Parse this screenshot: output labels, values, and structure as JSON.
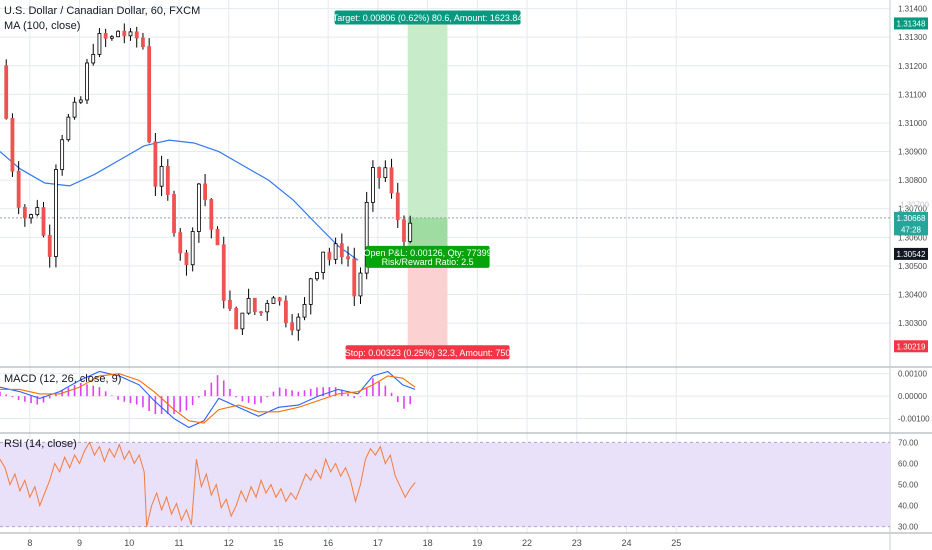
{
  "header": {
    "symbol": "U.S. Dollar / Canadian Dollar, 60, FXCM",
    "ma_label": "MA (100, close)"
  },
  "panes": {
    "macd_label": "MACD (12, 26, close, 9)",
    "rsi_label": "RSI (14, close)"
  },
  "colors": {
    "up": "#26a69a",
    "down": "#ef5350",
    "candle_body_up": "#ffffff",
    "wick": "#000000",
    "ma": "#3179f5",
    "target_fill": "#c8ebc9",
    "stop_fill": "#fbd1d1",
    "target_badge": "#089981",
    "stop_badge": "#f23645",
    "pnl_badge": "#06a40b",
    "macd_line": "#2962ff",
    "signal_line": "#ff6d00",
    "hist_pos": "#e040fb",
    "rsi_line": "#f57c3b",
    "rsi_band": "#e9e0f9",
    "grid": "#e6e9ef",
    "axis_text": "#4a4a4a",
    "dark_badge": "#131722"
  },
  "chart_data": [
    {
      "type": "candlestick",
      "title": "U.S. Dollar / Canadian Dollar, 60, FXCM",
      "ylim": [
        1.3015,
        1.3143
      ],
      "y_ticks": [
        "1.31400",
        "1.31300",
        "1.31200",
        "1.31100",
        "1.31000",
        "1.30900",
        "1.30800",
        "1.30700",
        "1.30600",
        "1.30500",
        "1.30400",
        "1.30300"
      ],
      "x_ticks": [
        "8",
        "9",
        "10",
        "11",
        "12",
        "15",
        "16",
        "17",
        "18",
        "19",
        "22",
        "23",
        "24",
        "25"
      ],
      "x_range_days": [
        7.4,
        25.3
      ],
      "close_path": [
        [
          7.4,
          1.312
        ],
        [
          7.55,
          1.3098
        ],
        [
          7.7,
          1.3078
        ],
        [
          7.85,
          1.3068
        ],
        [
          8.0,
          1.3066
        ],
        [
          8.15,
          1.3072
        ],
        [
          8.3,
          1.3058
        ],
        [
          8.4,
          1.3056
        ],
        [
          8.55,
          1.3092
        ],
        [
          8.7,
          1.3098
        ],
        [
          8.85,
          1.3104
        ],
        [
          9.0,
          1.3105
        ],
        [
          9.1,
          1.3116
        ],
        [
          9.25,
          1.3126
        ],
        [
          9.45,
          1.313
        ],
        [
          9.6,
          1.3128
        ],
        [
          9.8,
          1.3133
        ],
        [
          10.0,
          1.3129
        ],
        [
          10.2,
          1.313
        ],
        [
          10.3,
          1.3126
        ],
        [
          10.35,
          1.311
        ],
        [
          10.45,
          1.308
        ],
        [
          10.55,
          1.3079
        ],
        [
          10.65,
          1.3082
        ],
        [
          10.75,
          1.3075
        ],
        [
          10.85,
          1.3069
        ],
        [
          10.95,
          1.306
        ],
        [
          11.05,
          1.3055
        ],
        [
          11.15,
          1.3049
        ],
        [
          11.25,
          1.3058
        ],
        [
          11.35,
          1.3086
        ],
        [
          11.45,
          1.3072
        ],
        [
          11.55,
          1.3074
        ],
        [
          11.65,
          1.3063
        ],
        [
          11.75,
          1.3058
        ],
        [
          11.9,
          1.304
        ],
        [
          12.05,
          1.3033
        ],
        [
          12.15,
          1.3026
        ],
        [
          12.3,
          1.3038
        ],
        [
          12.45,
          1.3036
        ],
        [
          12.6,
          1.3032
        ],
        [
          12.75,
          1.3038
        ],
        [
          12.9,
          1.3041
        ],
        [
          13.0,
          1.3038
        ],
        [
          13.1,
          1.3034
        ],
        [
          13.2,
          1.3031
        ],
        [
          13.35,
          1.303
        ],
        [
          13.5,
          1.3032
        ],
        [
          13.6,
          1.3045
        ],
        [
          13.75,
          1.3049
        ],
        [
          13.9,
          1.3056
        ],
        [
          14.05,
          1.3052
        ],
        [
          14.2,
          1.3057
        ],
        [
          14.35,
          1.3054
        ],
        [
          14.45,
          1.3051
        ],
        [
          14.55,
          1.3036
        ],
        [
          14.65,
          1.3048
        ],
        [
          14.75,
          1.3068
        ],
        [
          14.85,
          1.3078
        ],
        [
          14.95,
          1.3085
        ],
        [
          15.05,
          1.308
        ],
        [
          15.15,
          1.3084
        ],
        [
          15.25,
          1.3076
        ],
        [
          15.35,
          1.3068
        ],
        [
          15.45,
          1.3065
        ],
        [
          15.55,
          1.306
        ],
        [
          15.65,
          1.3062
        ],
        [
          15.75,
          1.3067
        ]
      ],
      "moving_average": {
        "name": "MA (100, close)",
        "points": [
          [
            7.4,
            1.309
          ],
          [
            7.8,
            1.3084
          ],
          [
            8.3,
            1.3079
          ],
          [
            8.8,
            1.3078
          ],
          [
            9.3,
            1.3082
          ],
          [
            9.8,
            1.3087
          ],
          [
            10.3,
            1.3092
          ],
          [
            10.8,
            1.3094
          ],
          [
            11.3,
            1.3093
          ],
          [
            11.8,
            1.309
          ],
          [
            12.3,
            1.3085
          ],
          [
            12.8,
            1.308
          ],
          [
            13.3,
            1.3073
          ],
          [
            13.8,
            1.3064
          ],
          [
            14.2,
            1.3057
          ],
          [
            14.6,
            1.3052
          ]
        ]
      },
      "position": {
        "entry": 1.30542,
        "target": 1.31348,
        "stop": 1.30219,
        "x_start": 15.6,
        "x_end": 16.4
      },
      "price_labels": [
        {
          "text": "1.31348",
          "value": 1.31348,
          "style": "target"
        },
        {
          "text": "1.30668",
          "value": 1.30668,
          "style": "up"
        },
        {
          "text": "47:28",
          "value": 1.30628,
          "style": "up"
        },
        {
          "text": "1.30542",
          "value": 1.30542,
          "style": "dark"
        },
        {
          "text": "1.30219",
          "value": 1.30219,
          "style": "stop"
        },
        {
          "text": "1.30700",
          "value": 1.307,
          "style": "ghost"
        }
      ],
      "annotations": {
        "target": "Target: 0.00806 (0.62%) 80.6, Amount: 1623.84",
        "stop": "Stop: 0.00323 (0.25%) 32.3, Amount: 750",
        "pnl_line1": "Open P&L: 0.00126, Qty: 77399",
        "pnl_line2": "Risk/Reward Ratio: 2.5"
      }
    },
    {
      "type": "line",
      "title": "MACD (12, 26, close, 9)",
      "ylim": [
        -0.0016,
        0.0013
      ],
      "y_ticks": [
        "0.00100",
        "0.00000",
        "-0.00100"
      ],
      "series": [
        {
          "name": "MACD",
          "points": [
            [
              7.4,
              0.0004
            ],
            [
              7.8,
              0.0002
            ],
            [
              8.2,
              -0.0001
            ],
            [
              8.6,
              0.0002
            ],
            [
              9.0,
              0.0007
            ],
            [
              9.4,
              0.0011
            ],
            [
              9.8,
              0.0009
            ],
            [
              10.2,
              0.0005
            ],
            [
              10.5,
              -0.0002
            ],
            [
              10.9,
              -0.001
            ],
            [
              11.2,
              -0.0014
            ],
            [
              11.5,
              -0.0011
            ],
            [
              11.8,
              -0.0001
            ],
            [
              12.2,
              -0.0005
            ],
            [
              12.6,
              -0.0009
            ],
            [
              13.0,
              -0.0005
            ],
            [
              13.4,
              -0.0004
            ],
            [
              13.8,
              0.0
            ],
            [
              14.2,
              0.0003
            ],
            [
              14.6,
              0.0001
            ],
            [
              14.9,
              0.0009
            ],
            [
              15.2,
              0.0011
            ],
            [
              15.5,
              0.0005
            ],
            [
              15.75,
              0.0003
            ]
          ]
        },
        {
          "name": "Signal",
          "points": [
            [
              7.4,
              0.0003
            ],
            [
              7.8,
              0.0003
            ],
            [
              8.2,
              0.0001
            ],
            [
              8.6,
              0.0001
            ],
            [
              9.0,
              0.0004
            ],
            [
              9.4,
              0.0009
            ],
            [
              9.8,
              0.001
            ],
            [
              10.2,
              0.0007
            ],
            [
              10.5,
              0.0002
            ],
            [
              10.9,
              -0.0006
            ],
            [
              11.2,
              -0.0011
            ],
            [
              11.5,
              -0.0012
            ],
            [
              11.8,
              -0.0006
            ],
            [
              12.2,
              -0.0004
            ],
            [
              12.6,
              -0.0007
            ],
            [
              13.0,
              -0.0007
            ],
            [
              13.4,
              -0.0005
            ],
            [
              13.8,
              -0.0002
            ],
            [
              14.2,
              0.0001
            ],
            [
              14.6,
              0.0002
            ],
            [
              14.9,
              0.0005
            ],
            [
              15.2,
              0.0009
            ],
            [
              15.5,
              0.0008
            ],
            [
              15.75,
              0.0004
            ]
          ]
        }
      ]
    },
    {
      "type": "line",
      "title": "RSI (14, close)",
      "ylim": [
        27,
        74
      ],
      "band": [
        30,
        70
      ],
      "y_ticks": [
        "70.00",
        "60.00",
        "50.00",
        "40.00",
        "30.00"
      ],
      "series": [
        {
          "name": "RSI",
          "points": [
            [
              7.4,
              62
            ],
            [
              7.5,
              58
            ],
            [
              7.6,
              50
            ],
            [
              7.7,
              55
            ],
            [
              7.8,
              47
            ],
            [
              7.9,
              52
            ],
            [
              8.0,
              44
            ],
            [
              8.1,
              49
            ],
            [
              8.2,
              40
            ],
            [
              8.3,
              46
            ],
            [
              8.4,
              52
            ],
            [
              8.5,
              60
            ],
            [
              8.6,
              56
            ],
            [
              8.7,
              63
            ],
            [
              8.8,
              58
            ],
            [
              8.9,
              64
            ],
            [
              9.0,
              60
            ],
            [
              9.1,
              66
            ],
            [
              9.2,
              70
            ],
            [
              9.3,
              64
            ],
            [
              9.4,
              68
            ],
            [
              9.5,
              61
            ],
            [
              9.6,
              67
            ],
            [
              9.7,
              63
            ],
            [
              9.8,
              69
            ],
            [
              9.9,
              62
            ],
            [
              10.0,
              66
            ],
            [
              10.1,
              60
            ],
            [
              10.2,
              64
            ],
            [
              10.3,
              56
            ],
            [
              10.35,
              30
            ],
            [
              10.45,
              40
            ],
            [
              10.55,
              46
            ],
            [
              10.65,
              38
            ],
            [
              10.75,
              44
            ],
            [
              10.85,
              36
            ],
            [
              10.95,
              41
            ],
            [
              11.05,
              33
            ],
            [
              11.15,
              38
            ],
            [
              11.25,
              31
            ],
            [
              11.35,
              62
            ],
            [
              11.45,
              49
            ],
            [
              11.55,
              55
            ],
            [
              11.65,
              45
            ],
            [
              11.75,
              50
            ],
            [
              11.85,
              39
            ],
            [
              11.95,
              43
            ],
            [
              12.05,
              35
            ],
            [
              12.15,
              40
            ],
            [
              12.25,
              47
            ],
            [
              12.35,
              42
            ],
            [
              12.45,
              49
            ],
            [
              12.55,
              44
            ],
            [
              12.65,
              52
            ],
            [
              12.75,
              46
            ],
            [
              12.85,
              50
            ],
            [
              12.95,
              44
            ],
            [
              13.05,
              48
            ],
            [
              13.15,
              42
            ],
            [
              13.25,
              46
            ],
            [
              13.35,
              43
            ],
            [
              13.45,
              49
            ],
            [
              13.55,
              55
            ],
            [
              13.65,
              52
            ],
            [
              13.75,
              57
            ],
            [
              13.85,
              53
            ],
            [
              13.95,
              62
            ],
            [
              14.05,
              56
            ],
            [
              14.15,
              60
            ],
            [
              14.25,
              54
            ],
            [
              14.35,
              58
            ],
            [
              14.45,
              52
            ],
            [
              14.55,
              42
            ],
            [
              14.65,
              50
            ],
            [
              14.75,
              62
            ],
            [
              14.85,
              67
            ],
            [
              14.95,
              64
            ],
            [
              15.05,
              68
            ],
            [
              15.15,
              60
            ],
            [
              15.25,
              64
            ],
            [
              15.35,
              54
            ],
            [
              15.45,
              49
            ],
            [
              15.55,
              44
            ],
            [
              15.65,
              48
            ],
            [
              15.75,
              51
            ]
          ]
        }
      ]
    }
  ]
}
